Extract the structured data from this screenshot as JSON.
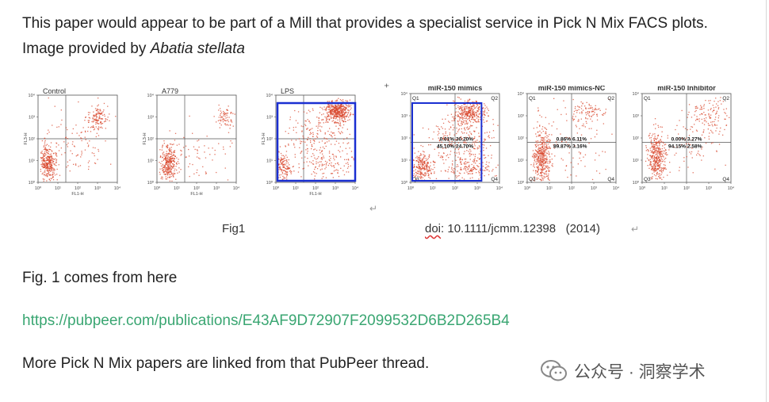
{
  "intro": {
    "text_before": "This paper would appear to be part of a Mill that provides a specialist service in Pick N Mix FACS plots. Image provided by ",
    "author": "Abatia stellata"
  },
  "figure": {
    "panels": [
      {
        "title": "Control",
        "ytick": "FL3-H",
        "xtick": "FL1-H"
      },
      {
        "title": "A779",
        "ytick": "FL3-H",
        "xtick": "FL1-H"
      },
      {
        "title": "LPS",
        "ytick": "FL3-H",
        "xtick": "FL1-H"
      },
      {
        "title": "miR-150 mimics",
        "q1": "Q1",
        "q2": "Q2",
        "q3": "Q3",
        "q4": "Q4",
        "pct_ul": "0.01%",
        "pct_ur": "30.20%",
        "pct_ll": "45.10%",
        "pct_lr": "24.70%"
      },
      {
        "title": "miR-150 mimics-NC",
        "q1": "Q1",
        "q2": "Q2",
        "q3": "Q3",
        "q4": "Q4",
        "pct_ul": "0.86%",
        "pct_ur": "6.11%",
        "pct_ll": "89.87%",
        "pct_lr": "3.16%"
      },
      {
        "title": "miR-150 Inhibitor",
        "q1": "Q1",
        "q2": "Q2",
        "q3": "Q3",
        "q4": "Q4",
        "pct_ul": "0.00%",
        "pct_ur": "3.27%",
        "pct_ll": "94.15%",
        "pct_lr": "2.58%"
      }
    ],
    "caption_fig": "Fig1",
    "caption_doi_word": "doi",
    "caption_doi_rest": ": 10.1111/jcmm.12398   (2014)",
    "return_glyph": "↵"
  },
  "paragraphs": {
    "fig_source": "Fig. 1 comes from here",
    "link": "https://pubpeer.com/publications/E43AF9D72907F2099532D6B2D265B4",
    "more": "More Pick N Mix papers are linked from that PubPeer thread."
  },
  "watermark": {
    "text": "公众号 · 洞察学术",
    "icon": "wechat-icon"
  },
  "colors": {
    "dots": "#d8452b",
    "highlight_box": "#1a2fd1",
    "link": "#3aa672"
  }
}
